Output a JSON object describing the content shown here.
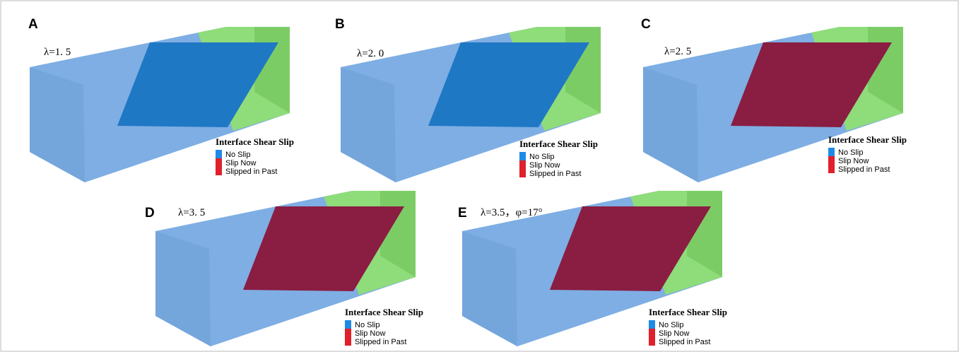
{
  "panels": [
    {
      "letter": "A",
      "label": "λ=1. 5",
      "legend": {
        "title": "Interface Shear Slip",
        "items": [
          "No Slip",
          "Slip Now",
          "Slipped in Past"
        ]
      }
    },
    {
      "letter": "B",
      "label": "λ=2. 0",
      "legend": {
        "title": "Interface Shear Slip",
        "items": [
          "No Slip",
          "Slip Now",
          "Slipped in Past"
        ]
      }
    },
    {
      "letter": "C",
      "label": "λ=2. 5",
      "legend": {
        "title": "Interface Shear Slip",
        "items": [
          "No Slip",
          "Slip Now",
          "Slipped in Past"
        ]
      }
    },
    {
      "letter": "D",
      "label": "λ=3. 5",
      "legend": {
        "title": "Interface Shear Slip",
        "items": [
          "No Slip",
          "Slip Now",
          "Slipped in Past"
        ]
      }
    },
    {
      "letter": "E",
      "label": "λ=3.5，φ=17°",
      "legend": {
        "title": "Interface Shear Slip",
        "items": [
          "No Slip",
          "Slip Now",
          "Slipped in Past"
        ]
      }
    }
  ]
}
